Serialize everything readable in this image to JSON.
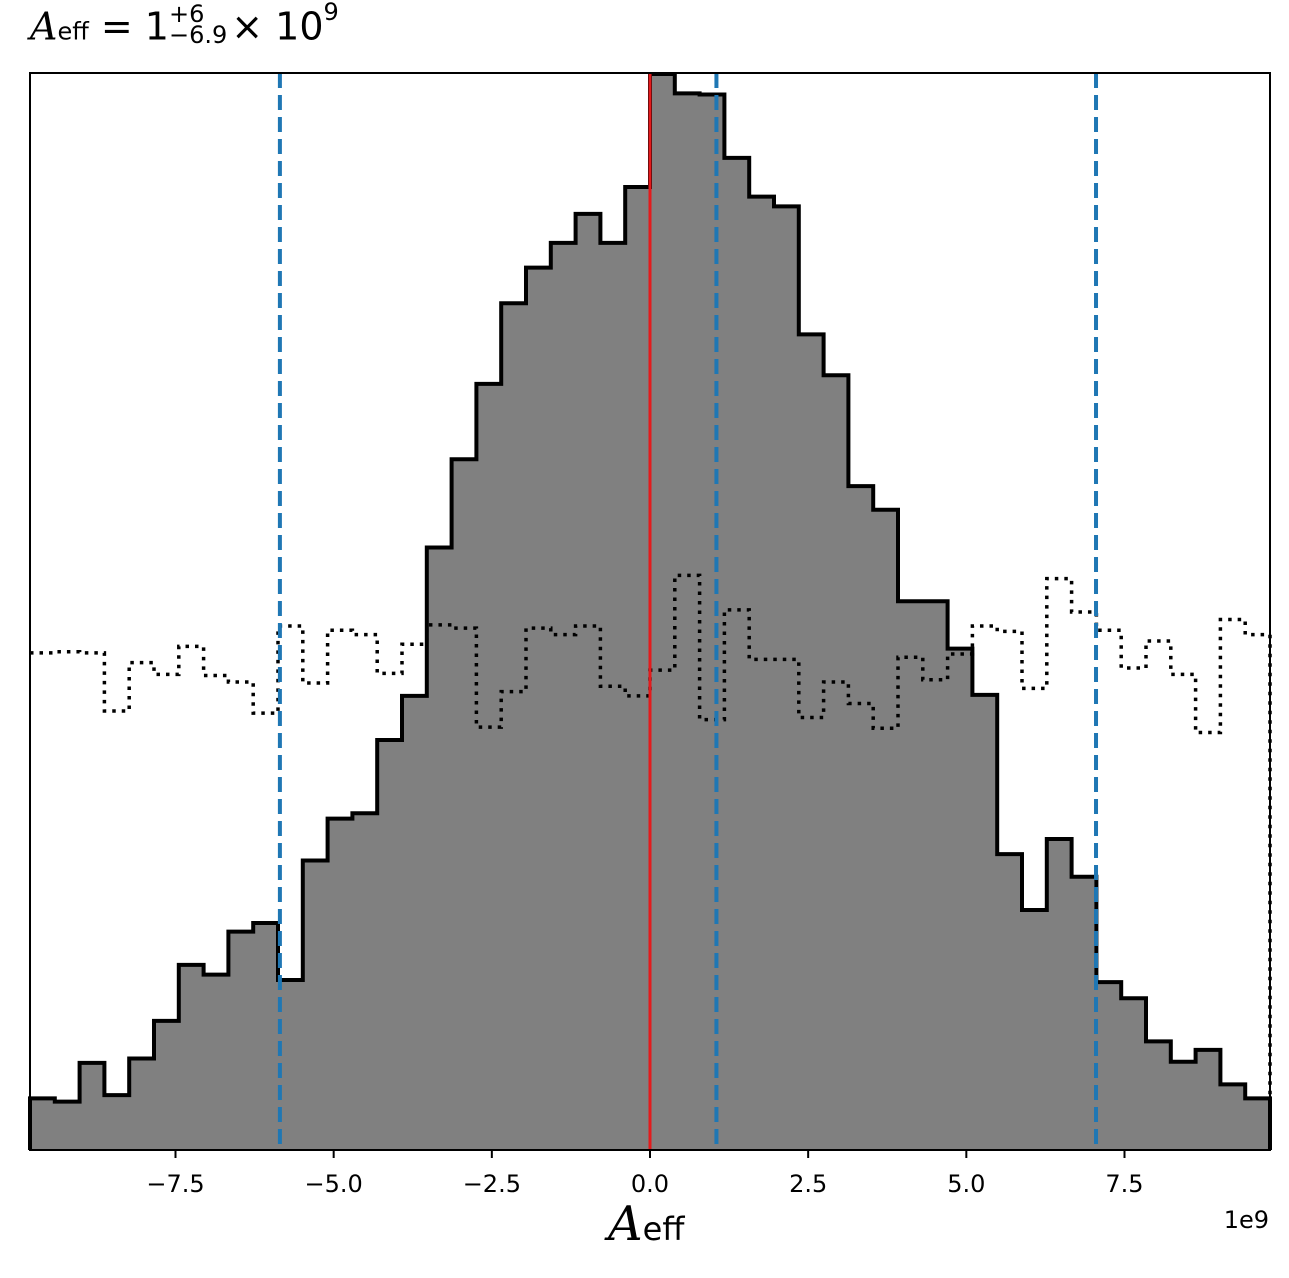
{
  "title": {
    "symbol": "A",
    "symbol_sub": "eff",
    "equals": "= 1",
    "upper": "+6",
    "lower": "−6.9",
    "times": "× 10",
    "exp": "9"
  },
  "chart_data": {
    "type": "histogram",
    "x_offset_label": "1e9",
    "xlabel": {
      "symbol": "A",
      "sub": "eff"
    },
    "xlim": [
      -9.8,
      9.8
    ],
    "ylim": [
      0,
      1
    ],
    "xticks": [
      -7.5,
      -5.0,
      -2.5,
      0.0,
      2.5,
      5.0,
      7.5
    ],
    "xtick_labels": [
      "−7.5",
      "−5.0",
      "−2.5",
      "0.0",
      "2.5",
      "5.0",
      "7.5"
    ],
    "bin_edges": [
      -9.8,
      -9.408,
      -9.016,
      -8.624,
      -8.232,
      -7.84,
      -7.448,
      -7.056,
      -6.664,
      -6.272,
      -5.88,
      -5.488,
      -5.096,
      -4.704,
      -4.312,
      -3.92,
      -3.528,
      -3.136,
      -2.744,
      -2.352,
      -1.96,
      -1.568,
      -1.176,
      -0.784,
      -0.392,
      0.0,
      0.392,
      0.784,
      1.176,
      1.568,
      1.96,
      2.352,
      2.744,
      3.136,
      3.528,
      3.92,
      4.312,
      4.704,
      5.096,
      5.488,
      5.88,
      6.272,
      6.664,
      7.056,
      7.448,
      7.84,
      8.232,
      8.624,
      9.016,
      9.408,
      9.8
    ],
    "posterior_heights": [
      0.048,
      0.045,
      0.081,
      0.051,
      0.085,
      0.12,
      0.172,
      0.163,
      0.203,
      0.211,
      0.158,
      0.269,
      0.308,
      0.313,
      0.381,
      0.422,
      0.56,
      0.642,
      0.712,
      0.787,
      0.82,
      0.843,
      0.87,
      0.843,
      0.895,
      1.0,
      0.982,
      0.981,
      0.922,
      0.886,
      0.877,
      0.758,
      0.72,
      0.617,
      0.595,
      0.51,
      0.51,
      0.466,
      0.423,
      0.275,
      0.223,
      0.289,
      0.254,
      0.156,
      0.141,
      0.101,
      0.082,
      0.093,
      0.061,
      0.048
    ],
    "prior_heights": [
      0.462,
      0.463,
      0.462,
      0.408,
      0.453,
      0.442,
      0.468,
      0.441,
      0.435,
      0.406,
      0.487,
      0.434,
      0.483,
      0.479,
      0.443,
      0.47,
      0.488,
      0.485,
      0.393,
      0.426,
      0.485,
      0.479,
      0.487,
      0.431,
      0.422,
      0.446,
      0.534,
      0.4,
      0.502,
      0.456,
      0.456,
      0.402,
      0.435,
      0.415,
      0.392,
      0.458,
      0.437,
      0.461,
      0.487,
      0.482,
      0.429,
      0.531,
      0.5,
      0.483,
      0.448,
      0.473,
      0.442,
      0.388,
      0.493,
      0.479
    ],
    "series": [
      {
        "name": "",
        "style": "filled-step",
        "fill": "#808080",
        "edge": "#000000",
        "data_key": "posterior_heights"
      },
      {
        "name": "",
        "style": "dotted-step",
        "edge": "#000000",
        "data_key": "prior_heights"
      }
    ],
    "vlines": [
      {
        "x": 0.0,
        "color": "#e41a1c",
        "style": "solid"
      },
      {
        "x": -5.85,
        "color": "#1f77b4",
        "style": "dashed"
      },
      {
        "x": 1.05,
        "color": "#1f77b4",
        "style": "dashed"
      },
      {
        "x": 7.05,
        "color": "#1f77b4",
        "style": "dashed"
      }
    ],
    "grid": false,
    "legend": "none"
  }
}
